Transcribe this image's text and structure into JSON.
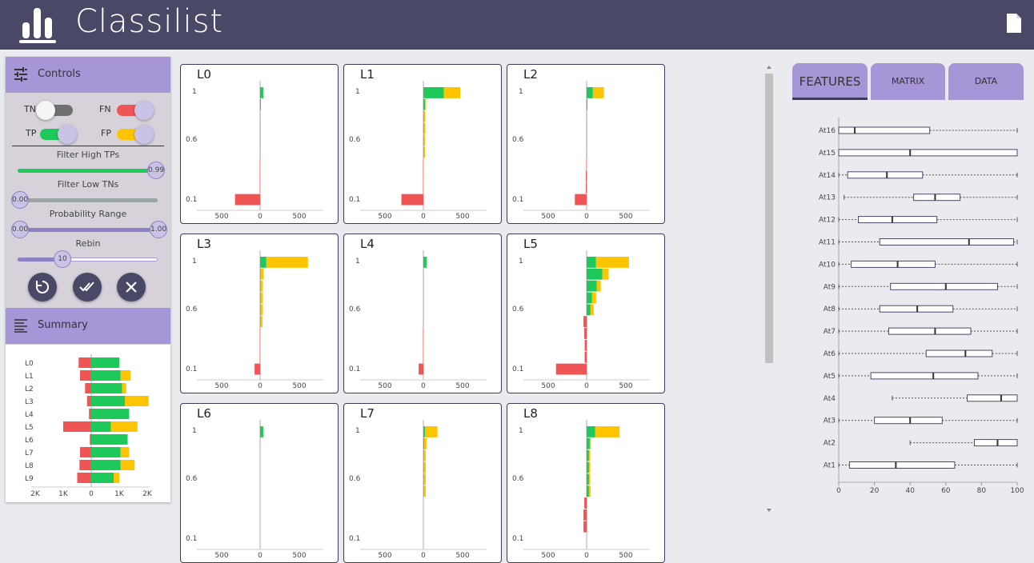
{
  "app": {
    "title": "Classilist"
  },
  "controls": {
    "title": "Controls",
    "toggles": [
      {
        "label": "TN",
        "on": false,
        "color": "#707070"
      },
      {
        "label": "FN",
        "on": true,
        "color": "#f05555"
      },
      {
        "label": "TP",
        "on": true,
        "color": "#1ec95b"
      },
      {
        "label": "FP",
        "on": true,
        "color": "#ffc400"
      }
    ],
    "filter_high_tps": {
      "label": "Filter High TPs",
      "value": "0.99"
    },
    "filter_low_tns": {
      "label": "Filter Low TNs",
      "value": "0.00"
    },
    "probability_range": {
      "label": "Probability Range",
      "min": "0.00",
      "max": "1.00"
    },
    "rebin": {
      "label": "Rebin",
      "value": "10"
    }
  },
  "summary": {
    "title": "Summary",
    "labels": [
      "L0",
      "L1",
      "L2",
      "L3",
      "L4",
      "L5",
      "L6",
      "L7",
      "L8",
      "L9"
    ],
    "neg": [
      450,
      400,
      220,
      150,
      80,
      1000,
      50,
      400,
      420,
      500
    ],
    "tp": [
      1000,
      1050,
      1100,
      1200,
      1350,
      700,
      1300,
      1050,
      1050,
      800
    ],
    "fp": [
      0,
      350,
      150,
      850,
      0,
      950,
      0,
      300,
      500,
      200
    ],
    "ticks": [
      "2K",
      "1K",
      "0",
      "1K",
      "2K"
    ]
  },
  "charts": [
    {
      "label": "L0",
      "bins": [
        {
          "fn": 0,
          "tp": 40,
          "fp": 0
        },
        {
          "fn": 0,
          "tp": 10,
          "fp": 0
        },
        {
          "fn": 0,
          "tp": 5,
          "fp": 0
        },
        {
          "fn": 0,
          "tp": 5,
          "fp": 0
        },
        {
          "fn": 0,
          "tp": 5,
          "fp": 0
        },
        {
          "fn": 0,
          "tp": 5,
          "fp": 0
        },
        {
          "fn": 5,
          "tp": 0,
          "fp": 0
        },
        {
          "fn": 5,
          "tp": 0,
          "fp": 0
        },
        {
          "fn": 5,
          "tp": 0,
          "fp": 0
        },
        {
          "fn": 320,
          "tp": 0,
          "fp": 0
        }
      ]
    },
    {
      "label": "L1",
      "bins": [
        {
          "fn": 0,
          "tp": 260,
          "fp": 210
        },
        {
          "fn": 0,
          "tp": 20,
          "fp": 15
        },
        {
          "fn": 0,
          "tp": 5,
          "fp": 20
        },
        {
          "fn": 0,
          "tp": 5,
          "fp": 20
        },
        {
          "fn": 0,
          "tp": 5,
          "fp": 15
        },
        {
          "fn": 0,
          "tp": 5,
          "fp": 15
        },
        {
          "fn": 5,
          "tp": 0,
          "fp": 0
        },
        {
          "fn": 5,
          "tp": 0,
          "fp": 0
        },
        {
          "fn": 5,
          "tp": 0,
          "fp": 0
        },
        {
          "fn": 280,
          "tp": 0,
          "fp": 0
        }
      ]
    },
    {
      "label": "L2",
      "bins": [
        {
          "fn": 0,
          "tp": 80,
          "fp": 140
        },
        {
          "fn": 0,
          "tp": 10,
          "fp": 0
        },
        {
          "fn": 0,
          "tp": 5,
          "fp": 0
        },
        {
          "fn": 0,
          "tp": 5,
          "fp": 0
        },
        {
          "fn": 0,
          "tp": 5,
          "fp": 0
        },
        {
          "fn": 0,
          "tp": 5,
          "fp": 0
        },
        {
          "fn": 5,
          "tp": 0,
          "fp": 0
        },
        {
          "fn": 10,
          "tp": 0,
          "fp": 0
        },
        {
          "fn": 10,
          "tp": 0,
          "fp": 0
        },
        {
          "fn": 150,
          "tp": 0,
          "fp": 0
        }
      ]
    },
    {
      "label": "L3",
      "bins": [
        {
          "fn": 0,
          "tp": 80,
          "fp": 530
        },
        {
          "fn": 0,
          "tp": 5,
          "fp": 40
        },
        {
          "fn": 0,
          "tp": 5,
          "fp": 30
        },
        {
          "fn": 0,
          "tp": 5,
          "fp": 30
        },
        {
          "fn": 0,
          "tp": 5,
          "fp": 30
        },
        {
          "fn": 0,
          "tp": 5,
          "fp": 25
        },
        {
          "fn": 5,
          "tp": 0,
          "fp": 0
        },
        {
          "fn": 5,
          "tp": 0,
          "fp": 0
        },
        {
          "fn": 5,
          "tp": 0,
          "fp": 0
        },
        {
          "fn": 70,
          "tp": 0,
          "fp": 0
        }
      ]
    },
    {
      "label": "L4",
      "bins": [
        {
          "fn": 0,
          "tp": 40,
          "fp": 10
        },
        {
          "fn": 0,
          "tp": 5,
          "fp": 0
        },
        {
          "fn": 0,
          "tp": 5,
          "fp": 0
        },
        {
          "fn": 0,
          "tp": 5,
          "fp": 0
        },
        {
          "fn": 0,
          "tp": 5,
          "fp": 0
        },
        {
          "fn": 0,
          "tp": 5,
          "fp": 0
        },
        {
          "fn": 5,
          "tp": 0,
          "fp": 0
        },
        {
          "fn": 5,
          "tp": 0,
          "fp": 0
        },
        {
          "fn": 5,
          "tp": 0,
          "fp": 0
        },
        {
          "fn": 60,
          "tp": 0,
          "fp": 0
        }
      ]
    },
    {
      "label": "L5",
      "bins": [
        {
          "fn": 0,
          "tp": 120,
          "fp": 420
        },
        {
          "fn": 0,
          "tp": 200,
          "fp": 80
        },
        {
          "fn": 0,
          "tp": 130,
          "fp": 50
        },
        {
          "fn": 0,
          "tp": 70,
          "fp": 50
        },
        {
          "fn": 0,
          "tp": 50,
          "fp": 40
        },
        {
          "fn": 40,
          "tp": 0,
          "fp": 0
        },
        {
          "fn": 30,
          "tp": 0,
          "fp": 0
        },
        {
          "fn": 25,
          "tp": 0,
          "fp": 0
        },
        {
          "fn": 25,
          "tp": 0,
          "fp": 0
        },
        {
          "fn": 390,
          "tp": 0,
          "fp": 0
        }
      ]
    },
    {
      "label": "L6",
      "bins": [
        {
          "fn": 0,
          "tp": 40,
          "fp": 0
        },
        {
          "fn": 0,
          "tp": 0,
          "fp": 0
        },
        {
          "fn": 0,
          "tp": 0,
          "fp": 0
        },
        {
          "fn": 0,
          "tp": 0,
          "fp": 0
        },
        {
          "fn": 0,
          "tp": 0,
          "fp": 0
        },
        {
          "fn": 0,
          "tp": 0,
          "fp": 0
        },
        {
          "fn": 0,
          "tp": 0,
          "fp": 0
        },
        {
          "fn": 0,
          "tp": 0,
          "fp": 0
        },
        {
          "fn": 0,
          "tp": 0,
          "fp": 0
        },
        {
          "fn": 0,
          "tp": 0,
          "fp": 0
        }
      ]
    },
    {
      "label": "L7",
      "bins": [
        {
          "fn": 0,
          "tp": 20,
          "fp": 160
        },
        {
          "fn": 0,
          "tp": 10,
          "fp": 30
        },
        {
          "fn": 0,
          "tp": 5,
          "fp": 25
        },
        {
          "fn": 0,
          "tp": 5,
          "fp": 25
        },
        {
          "fn": 0,
          "tp": 5,
          "fp": 25
        },
        {
          "fn": 0,
          "tp": 5,
          "fp": 25
        },
        {
          "fn": 0,
          "tp": 0,
          "fp": 0
        },
        {
          "fn": 0,
          "tp": 0,
          "fp": 0
        },
        {
          "fn": 0,
          "tp": 0,
          "fp": 0
        },
        {
          "fn": 0,
          "tp": 0,
          "fp": 0
        }
      ]
    },
    {
      "label": "L8",
      "bins": [
        {
          "fn": 0,
          "tp": 110,
          "fp": 310
        },
        {
          "fn": 0,
          "tp": 40,
          "fp": 15
        },
        {
          "fn": 0,
          "tp": 30,
          "fp": 15
        },
        {
          "fn": 0,
          "tp": 30,
          "fp": 15
        },
        {
          "fn": 0,
          "tp": 30,
          "fp": 15
        },
        {
          "fn": 0,
          "tp": 30,
          "fp": 20
        },
        {
          "fn": 30,
          "tp": 0,
          "fp": 0
        },
        {
          "fn": 40,
          "tp": 0,
          "fp": 0
        },
        {
          "fn": 40,
          "tp": 0,
          "fp": 0
        },
        {
          "fn": 0,
          "tp": 0,
          "fp": 0
        }
      ]
    }
  ],
  "chart_axis": {
    "y_labels": [
      "1",
      "0.6",
      "0.1"
    ],
    "x_labels": [
      "500",
      "0",
      "500"
    ]
  },
  "tabs": [
    "FEATURES",
    "MATRIX",
    "DATA"
  ],
  "features": {
    "ticks": [
      "0",
      "20",
      "40",
      "60",
      "80",
      "100"
    ],
    "items": [
      {
        "name": "At16",
        "min": 0,
        "q1": 0,
        "med": 9,
        "q3": 51,
        "max": 100
      },
      {
        "name": "At15",
        "min": 0,
        "q1": 0,
        "med": 40,
        "q3": 100,
        "max": 100
      },
      {
        "name": "At14",
        "min": 0,
        "q1": 5,
        "med": 27,
        "q3": 47,
        "max": 100
      },
      {
        "name": "At13",
        "min": 3,
        "q1": 42,
        "med": 54,
        "q3": 68,
        "max": 100
      },
      {
        "name": "At12",
        "min": 0,
        "q1": 11,
        "med": 30,
        "q3": 55,
        "max": 100
      },
      {
        "name": "At11",
        "min": 0,
        "q1": 23,
        "med": 73,
        "q3": 98,
        "max": 100
      },
      {
        "name": "At10",
        "min": 0,
        "q1": 7,
        "med": 33,
        "q3": 54,
        "max": 100
      },
      {
        "name": "At9",
        "min": 0,
        "q1": 29,
        "med": 60,
        "q3": 89,
        "max": 100
      },
      {
        "name": "At8",
        "min": 0,
        "q1": 23,
        "med": 44,
        "q3": 64,
        "max": 100
      },
      {
        "name": "At7",
        "min": 0,
        "q1": 28,
        "med": 54,
        "q3": 74,
        "max": 100
      },
      {
        "name": "At6",
        "min": 0,
        "q1": 49,
        "med": 71,
        "q3": 86,
        "max": 100
      },
      {
        "name": "At5",
        "min": 0,
        "q1": 18,
        "med": 53,
        "q3": 78,
        "max": 100
      },
      {
        "name": "At4",
        "min": 30,
        "q1": 72,
        "med": 91,
        "q3": 100,
        "max": 100
      },
      {
        "name": "At3",
        "min": 0,
        "q1": 20,
        "med": 40,
        "q3": 58,
        "max": 100
      },
      {
        "name": "At2",
        "min": 40,
        "q1": 76,
        "med": 89,
        "q3": 100,
        "max": 100
      },
      {
        "name": "At1",
        "min": 0,
        "q1": 6,
        "med": 32,
        "q3": 65,
        "max": 100
      }
    ]
  },
  "colors": {
    "fn": "#f05555",
    "tp": "#1ec95b",
    "fp": "#ffc400",
    "header": "#4a4867",
    "accent": "#a696d8"
  }
}
